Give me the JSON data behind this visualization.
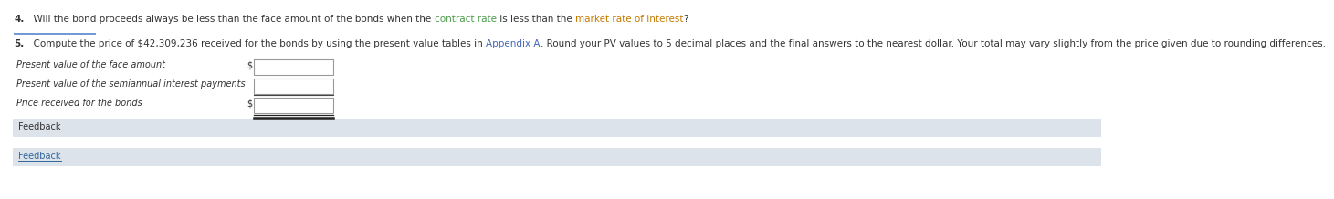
{
  "bg_color": "#ffffff",
  "q4_prefix": "4.",
  "q4_text": "  Will the bond proceeds always be less than the face amount of the bonds when the ",
  "q4_hl1": "contract rate",
  "q4_mid": " is less than the ",
  "q4_hl2": "market rate of interest",
  "q4_end": "?",
  "q5_prefix": "5.",
  "q5_text": "  Compute the price of $42,309,236 received for the bonds by using the present value tables in ",
  "q5_appendix": "Appendix A",
  "q5_text2": ". Round your PV values to 5 decimal places and the final answers to the nearest dollar. Your total may vary slightly from the price given due to rounding differences.",
  "row1_label": "Present value of the face amount",
  "row2_label": "Present value of the semiannual interest payments",
  "row3_label": "Price received for the bonds",
  "fb1_text": "Feedback",
  "fb2_text": "Feedback",
  "text_color": "#333333",
  "hl1_color": "#4a9a4a",
  "hl2_color": "#c47a00",
  "appendix_color": "#4466bb",
  "fb2_color": "#336699",
  "feedback_bg": "#dce3eb",
  "divider_color": "#5588cc",
  "box_edge_color": "#999999",
  "fs": 7.5
}
